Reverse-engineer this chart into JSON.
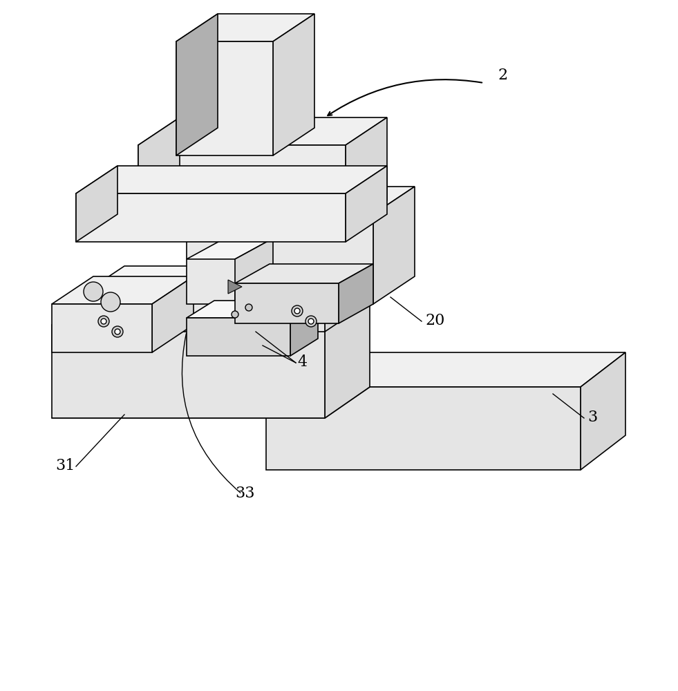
{
  "background_color": "#ffffff",
  "line_color": "#000000",
  "face_color_light": "#f0f0f0",
  "face_color_mid": "#d8d8d8",
  "face_color_dark": "#b0b0b0",
  "label_2": "2",
  "label_20": "20",
  "label_3": "3",
  "label_31": "31",
  "label_33": "33",
  "label_4": "4",
  "font_size_labels": 16,
  "figsize": [
    9.81,
    10.0
  ],
  "dpi": 100
}
